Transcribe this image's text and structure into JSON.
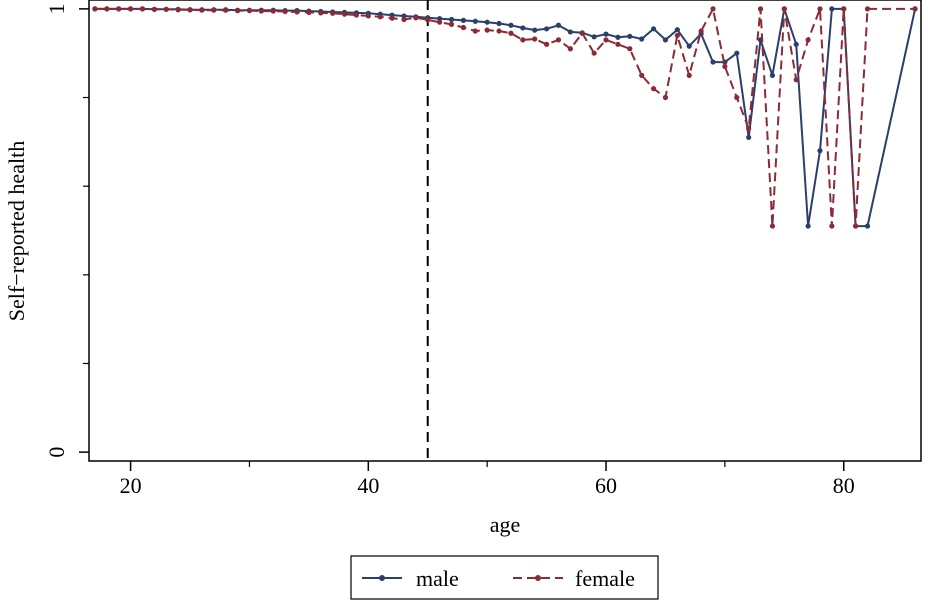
{
  "chart_data": {
    "type": "line",
    "title": "",
    "xlabel": "age",
    "ylabel": "Self−reported health",
    "xlim": [
      16.5,
      86.5
    ],
    "ylim": [
      -0.02,
      1.02
    ],
    "xticks": [
      20,
      40,
      60,
      80
    ],
    "yticks": [
      0,
      1
    ],
    "grid": false,
    "legend_position": "bottom-center",
    "reference_line": {
      "x": 45,
      "style": "dashed"
    },
    "colors": {
      "male": "#2b3f6b",
      "female": "#8c2a35",
      "reference": "#000000"
    },
    "series": [
      {
        "name": "male",
        "style": "solid",
        "x": [
          17,
          18,
          19,
          20,
          21,
          22,
          23,
          24,
          25,
          26,
          27,
          28,
          29,
          30,
          31,
          32,
          33,
          34,
          35,
          36,
          37,
          38,
          39,
          40,
          41,
          42,
          43,
          44,
          45,
          46,
          47,
          48,
          49,
          50,
          51,
          52,
          53,
          54,
          55,
          56,
          57,
          58,
          59,
          60,
          61,
          62,
          63,
          64,
          65,
          66,
          67,
          68,
          69,
          70,
          71,
          72,
          73,
          74,
          75,
          76,
          77,
          78,
          79,
          80,
          81,
          82,
          86
        ],
        "y": [
          1,
          1,
          1,
          1,
          1,
          0.999,
          0.999,
          0.999,
          0.998,
          0.998,
          0.998,
          0.998,
          0.997,
          0.997,
          0.997,
          0.997,
          0.996,
          0.996,
          0.995,
          0.994,
          0.993,
          0.992,
          0.991,
          0.99,
          0.988,
          0.986,
          0.984,
          0.982,
          0.98,
          0.978,
          0.976,
          0.974,
          0.972,
          0.97,
          0.967,
          0.963,
          0.957,
          0.952,
          0.955,
          0.963,
          0.948,
          0.946,
          0.937,
          0.943,
          0.936,
          0.938,
          0.932,
          0.955,
          0.93,
          0.953,
          0.916,
          0.944,
          0.88,
          0.88,
          0.9,
          0.71,
          0.93,
          0.85,
          1,
          0.92,
          0.51,
          0.68,
          1,
          1,
          0.51,
          0.51,
          1
        ]
      },
      {
        "name": "female",
        "style": "dashed",
        "x": [
          17,
          18,
          19,
          20,
          21,
          22,
          23,
          24,
          25,
          26,
          27,
          28,
          29,
          30,
          31,
          32,
          33,
          34,
          35,
          36,
          37,
          38,
          39,
          40,
          41,
          42,
          43,
          44,
          45,
          46,
          47,
          48,
          49,
          50,
          51,
          52,
          53,
          54,
          55,
          56,
          57,
          58,
          59,
          60,
          61,
          62,
          63,
          64,
          65,
          66,
          67,
          68,
          69,
          70,
          71,
          72,
          73,
          74,
          75,
          76,
          77,
          78,
          79,
          80,
          81,
          82,
          86
        ],
        "y": [
          1,
          1,
          1,
          1,
          1,
          0.999,
          0.999,
          0.998,
          0.998,
          0.997,
          0.997,
          0.997,
          0.996,
          0.996,
          0.995,
          0.995,
          0.994,
          0.993,
          0.992,
          0.991,
          0.99,
          0.988,
          0.986,
          0.984,
          0.982,
          0.979,
          0.976,
          0.98,
          0.975,
          0.97,
          0.965,
          0.958,
          0.95,
          0.952,
          0.95,
          0.945,
          0.93,
          0.932,
          0.92,
          0.93,
          0.91,
          0.945,
          0.9,
          0.93,
          0.92,
          0.91,
          0.85,
          0.82,
          0.8,
          0.94,
          0.85,
          0.95,
          1,
          0.87,
          0.8,
          0.73,
          1,
          0.51,
          1,
          0.84,
          0.93,
          1,
          0.51,
          1,
          0.51,
          1,
          1
        ]
      }
    ]
  }
}
